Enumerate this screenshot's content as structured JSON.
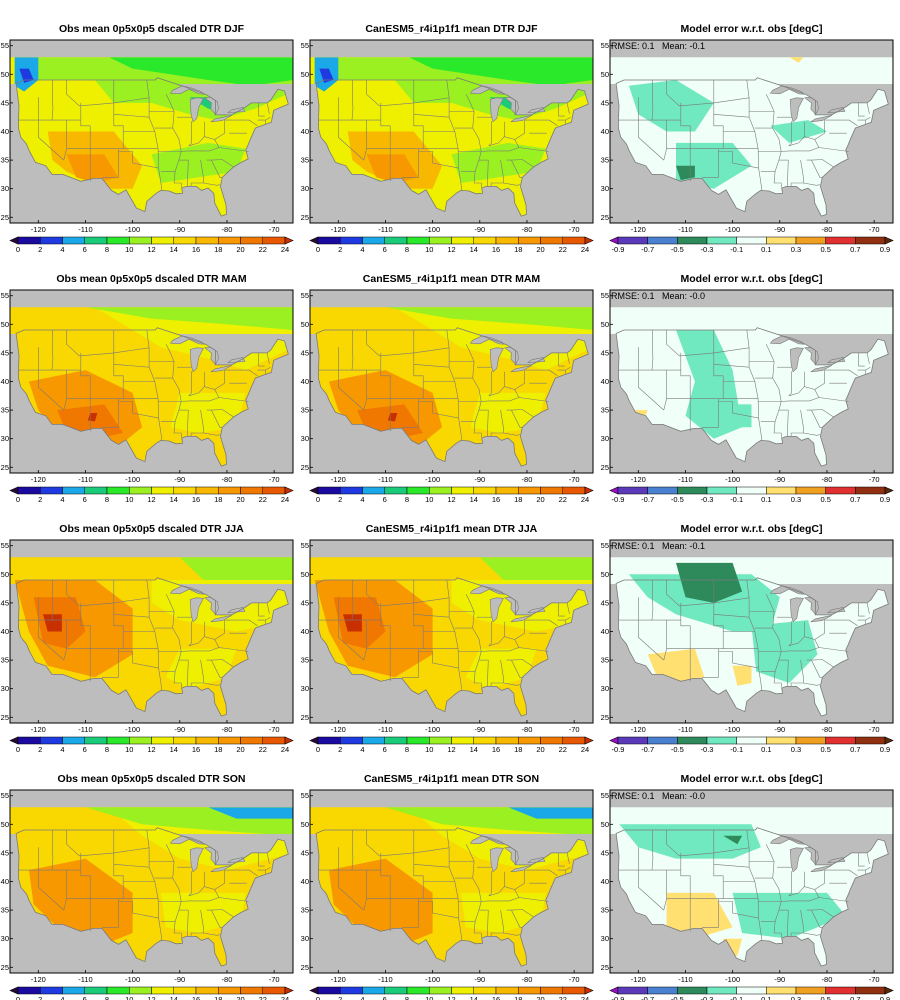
{
  "figure": {
    "rows": [
      {
        "season": "DJF",
        "obs_title": "Obs mean 0p5x0p5 dscaled DTR DJF",
        "model_title": "CanESM5_r4i1p1f1 mean DTR DJF",
        "diff_title": "Model error w.r.t. obs [degC]",
        "rmse_label": "RMSE: 0.1",
        "mean_label": "Mean: -0.1"
      },
      {
        "season": "MAM",
        "obs_title": "Obs mean 0p5x0p5 dscaled DTR MAM",
        "model_title": "CanESM5_r4i1p1f1 mean DTR MAM",
        "diff_title": "Model error w.r.t. obs [degC]",
        "rmse_label": "RMSE: 0.1",
        "mean_label": "Mean: -0.0"
      },
      {
        "season": "JJA",
        "obs_title": "Obs mean 0p5x0p5 dscaled DTR JJA",
        "model_title": "CanESM5_r4i1p1f1 mean DTR JJA",
        "diff_title": "Model error w.r.t. obs [degC]",
        "rmse_label": "RMSE: 0.1",
        "mean_label": "Mean: -0.1"
      },
      {
        "season": "SON",
        "obs_title": "Obs mean 0p5x0p5 dscaled DTR SON",
        "model_title": "CanESM5_r4i1p1f1 mean DTR SON",
        "diff_title": "Model error w.r.t. obs [degC]",
        "rmse_label": "RMSE: 0.1",
        "mean_label": "Mean: -0.0"
      }
    ],
    "lat_ticks": [
      "25",
      "30",
      "35",
      "40",
      "45",
      "50",
      "55"
    ],
    "lon_ticks": [
      "-120",
      "-110",
      "-100",
      "-90",
      "-80",
      "-70"
    ],
    "dtr_colorbar": {
      "labels": [
        "0",
        "2",
        "4",
        "6",
        "8",
        "10",
        "12",
        "14",
        "16",
        "18",
        "20",
        "22",
        "24"
      ],
      "colors": [
        "#2a0a3a",
        "#1a0aa0",
        "#1f3ae0",
        "#1aa8e8",
        "#1acc7a",
        "#2ae82a",
        "#9af020",
        "#eef000",
        "#f8d800",
        "#f8b800",
        "#f89800",
        "#f07800",
        "#e85800",
        "#c83000"
      ]
    },
    "diff_colorbar": {
      "labels": [
        "-0.9",
        "-0.7",
        "-0.5",
        "-0.3",
        "-0.1",
        "0.1",
        "0.3",
        "0.5",
        "0.7",
        "0.9"
      ],
      "colors": [
        "#9a10c8",
        "#5a3ab8",
        "#4a80d0",
        "#2e8a5a",
        "#70e8c0",
        "#f0fff8",
        "#ffe070",
        "#f0a020",
        "#e03030",
        "#903010",
        "#5a2a0a"
      ]
    },
    "colors": {
      "no_data": "#bdbdbd",
      "border": "#7a7a7a",
      "diff_background": "#f0fff8"
    }
  }
}
